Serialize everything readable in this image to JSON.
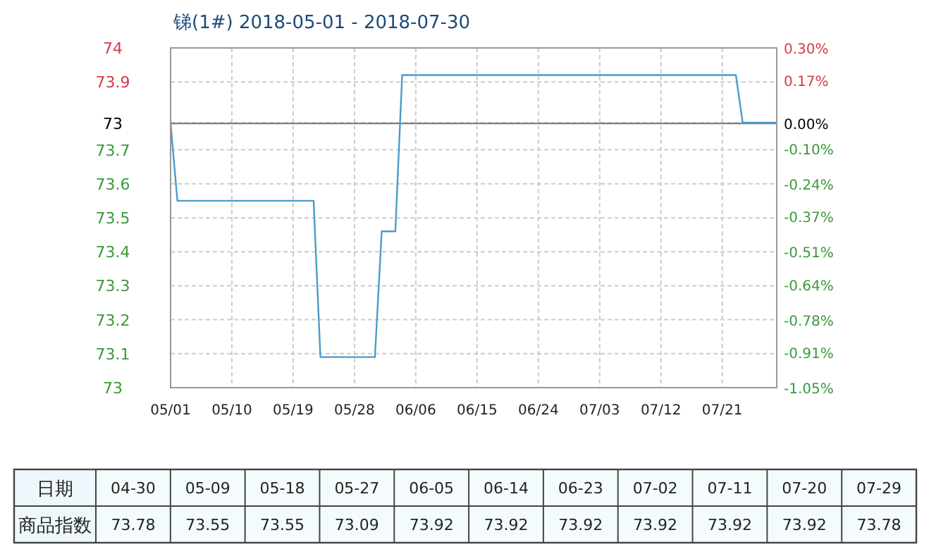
{
  "chart_data": [
    {
      "type": "line",
      "title": "锑(1#) 2018-05-01 - 2018-07-30",
      "x": [
        "2018-05-01",
        "2018-05-02",
        "2018-05-22",
        "2018-05-23",
        "2018-05-31",
        "2018-06-01",
        "2018-06-03",
        "2018-06-04",
        "2018-07-23",
        "2018-07-24",
        "2018-07-29"
      ],
      "series": [
        {
          "color": "#4a9cc8",
          "values": [
            73.78,
            73.55,
            73.55,
            73.09,
            73.09,
            73.46,
            73.46,
            73.92,
            73.92,
            73.78,
            73.78
          ]
        }
      ],
      "xlim": [
        "2018-05-01",
        "2018-07-29"
      ],
      "xticks": [
        {
          "value": "2018-05-01",
          "label": "05/01"
        },
        {
          "value": "2018-05-10",
          "label": "05/10"
        },
        {
          "value": "2018-05-19",
          "label": "05/19"
        },
        {
          "value": "2018-05-28",
          "label": "05/28"
        },
        {
          "value": "2018-06-06",
          "label": "06/06"
        },
        {
          "value": "2018-06-15",
          "label": "06/15"
        },
        {
          "value": "2018-06-24",
          "label": "06/24"
        },
        {
          "value": "2018-07-03",
          "label": "07/03"
        },
        {
          "value": "2018-07-12",
          "label": "07/12"
        },
        {
          "value": "2018-07-21",
          "label": "07/21"
        }
      ],
      "ylim": [
        73.0,
        74.0
      ],
      "yticks": [
        {
          "value": 74.0,
          "label": "74"
        },
        {
          "value": 73.9,
          "label": "73.9"
        },
        {
          "value": 73.78,
          "label": null
        },
        {
          "value": 73.7,
          "label": "73.7"
        },
        {
          "value": 73.6,
          "label": "73.6"
        },
        {
          "value": 73.5,
          "label": "73.5"
        },
        {
          "value": 73.4,
          "label": "73.4"
        },
        {
          "value": 73.3,
          "label": "73.3"
        },
        {
          "value": 73.2,
          "label": "73.2"
        },
        {
          "value": 73.1,
          "label": "73.1"
        },
        {
          "value": 73.0,
          "label": "73"
        }
      ],
      "y2lim": [
        -1.05,
        0.3
      ],
      "y2ticks": [
        {
          "value": 0.3,
          "label": "0.30%"
        },
        {
          "value": 0.17,
          "label": "0.17%"
        },
        {
          "value": 0.0,
          "label": "0.00%"
        },
        {
          "value": -0.1,
          "label": "-0.10%"
        },
        {
          "value": -0.24,
          "label": "-0.24%"
        },
        {
          "value": -0.37,
          "label": "-0.37%"
        },
        {
          "value": -0.51,
          "label": "-0.51%"
        },
        {
          "value": -0.64,
          "label": "-0.64%"
        },
        {
          "value": -0.78,
          "label": "-0.78%"
        },
        {
          "value": -0.91,
          "label": "-0.91%"
        },
        {
          "value": -1.05,
          "label": "-1.05%"
        }
      ],
      "ref_lines": [
        {
          "axis": "y2",
          "value": 0,
          "color": "#808080"
        }
      ],
      "annotations": [
        "73"
      ],
      "grid": true,
      "marker": "none",
      "line_style": "solid"
    },
    {
      "type": "other",
      "xlabel": "日期",
      "ylabel": "商品指数",
      "categories": [
        "04-30",
        "05-09",
        "05-18",
        "05-27",
        "06-05",
        "06-14",
        "06-23",
        "07-02",
        "07-11",
        "07-20",
        "07-29"
      ],
      "values": [
        73.78,
        73.55,
        73.55,
        73.09,
        73.92,
        73.92,
        73.92,
        73.92,
        73.92,
        73.92,
        73.78
      ],
      "data_labels": true
    }
  ]
}
